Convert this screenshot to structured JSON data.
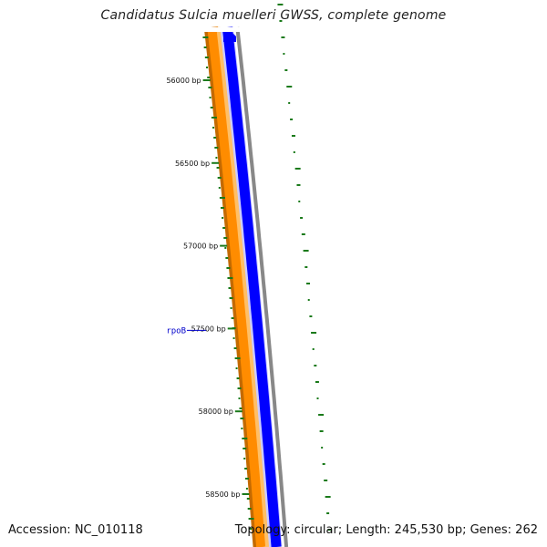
{
  "title": "Candidatus Sulcia muelleri GWSS, complete genome",
  "footer": {
    "accession": "Accession: NC_010118",
    "stats": "Topology: circular; Length: 245,530 bp; Genes: 262"
  },
  "gene_labels": [
    {
      "name": "rpoB",
      "bp": 57500
    }
  ],
  "axis_ticks": [
    {
      "bp": 56000,
      "label": "56000 bp"
    },
    {
      "bp": 56500,
      "label": "56500 bp"
    },
    {
      "bp": 57000,
      "label": "57000 bp"
    },
    {
      "bp": 57500,
      "label": "57500 bp"
    },
    {
      "bp": 58000,
      "label": "58000 bp"
    },
    {
      "bp": 58500,
      "label": "58500 bp"
    }
  ],
  "colors": {
    "orange_dark": "#c46a00",
    "orange": "#ff8c00",
    "orange_light": "#ffbf66",
    "blue": "#0000ff",
    "blue_light": "#ccccff",
    "gray": "#888888",
    "gc_green": "#1a7a1a",
    "label_blue": "#0000cc"
  }
}
